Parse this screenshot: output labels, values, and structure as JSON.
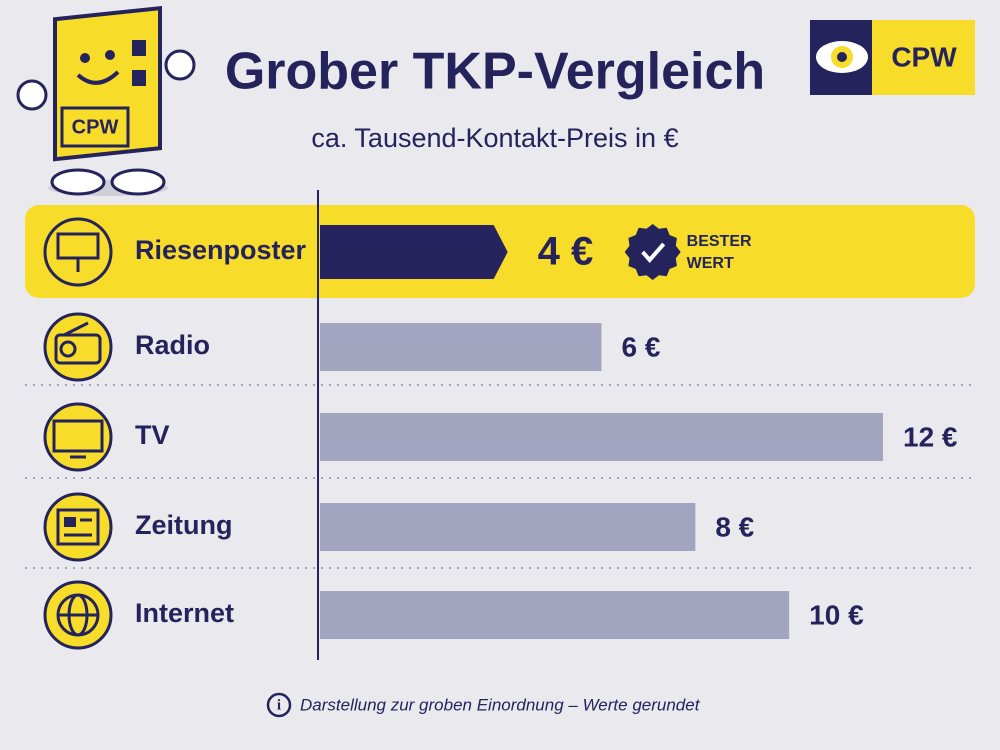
{
  "chart_data": {
    "type": "bar",
    "title": "Grober TKP-Vergleich",
    "subtitle": "ca. Tausend-Kontakt-Preis in €",
    "categories": [
      "Riesenposter",
      "Radio",
      "TV",
      "Zeitung",
      "Internet"
    ],
    "values": [
      4,
      6,
      12,
      8,
      10
    ],
    "value_labels": [
      "4 €",
      "6 €",
      "12 €",
      "8 €",
      "10 €"
    ],
    "color": "#a3a5c0",
    "highlight_color": "#26235e",
    "highlight_background": "#f7dc2a",
    "badge": [
      "BESTER",
      "WERT"
    ],
    "footnote": "Darstellung zur groben Einordnung – Werte gerundet",
    "logo": "CPW",
    "mascot_label": "CPW"
  }
}
